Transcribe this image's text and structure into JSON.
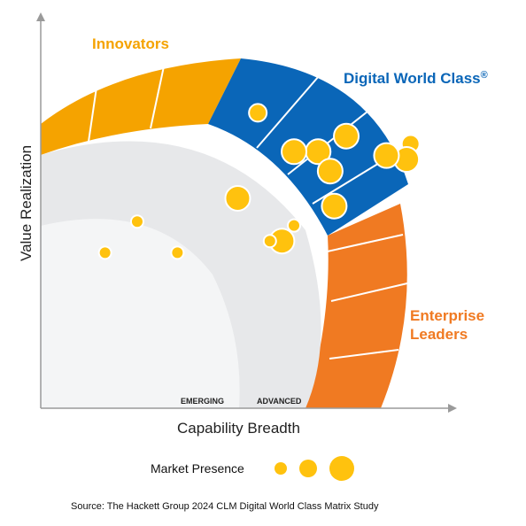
{
  "chart_data": {
    "type": "scatter",
    "xlabel": "Capability Breadth",
    "ylabel": "Value Realization",
    "quadrants": {
      "innovators": "Innovators",
      "digital_world_class": "Digital World Class",
      "digital_world_class_mark": "®",
      "enterprise_leaders_line1": "Enterprise",
      "enterprise_leaders_line2": "Leaders"
    },
    "rings": {
      "emerging": "EMERGING",
      "advanced": "ADVANCED"
    },
    "legend": {
      "label": "Market Presence",
      "sizes": [
        "small",
        "medium",
        "large"
      ]
    },
    "source": "Source: The Hackett Group 2024 CLM Digital World Class Matrix Study",
    "colors": {
      "innovators": "#F5A300",
      "digital_world_class": "#0A66B8",
      "enterprise_leaders": "#F07A22",
      "advanced_ring": "#E7E8EA",
      "emerging_ring": "#F4F5F6",
      "bubble": "#FFC20E",
      "axis": "#9A9A9A"
    },
    "x_range": [
      0,
      100
    ],
    "y_range": [
      0,
      100
    ],
    "points": [
      {
        "x": 16,
        "y": 40,
        "size": "small"
      },
      {
        "x": 34,
        "y": 40,
        "size": "small"
      },
      {
        "x": 24,
        "y": 48,
        "size": "small"
      },
      {
        "x": 69,
        "y": 66,
        "size": "large"
      },
      {
        "x": 60,
        "y": 43,
        "size": "large"
      },
      {
        "x": 49,
        "y": 54,
        "size": "large"
      },
      {
        "x": 54,
        "y": 76,
        "size": "medium"
      },
      {
        "x": 57,
        "y": 43,
        "size": "small"
      },
      {
        "x": 76,
        "y": 70,
        "size": "large"
      },
      {
        "x": 63,
        "y": 66,
        "size": "large"
      },
      {
        "x": 63,
        "y": 47,
        "size": "small"
      },
      {
        "x": 92,
        "y": 68,
        "size": "medium"
      },
      {
        "x": 72,
        "y": 61,
        "size": "large"
      },
      {
        "x": 91,
        "y": 64,
        "size": "large"
      },
      {
        "x": 86,
        "y": 65,
        "size": "large"
      },
      {
        "x": 73,
        "y": 52,
        "size": "large"
      }
    ]
  }
}
